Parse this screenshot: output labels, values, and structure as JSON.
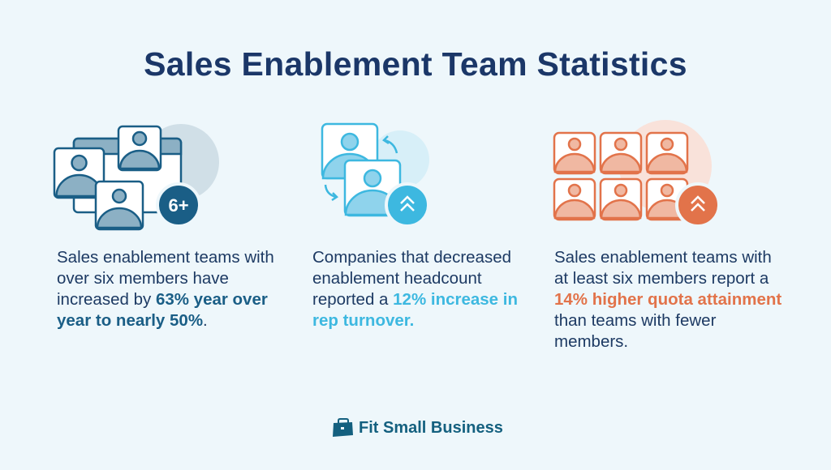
{
  "title": "Sales Enablement Team Statistics",
  "colors": {
    "background": "#eef7fb",
    "navy": "#1b3768",
    "teal": "#1a5e86",
    "cyan": "#3db8e0",
    "orange": "#e2734a"
  },
  "stats": [
    {
      "icon": "video-call-group-icon",
      "badge": "6+",
      "pre": "Sales enablement teams with over six members have increased by ",
      "highlight": "63% year over year to nearly 50%",
      "post": "."
    },
    {
      "icon": "swap-people-icon",
      "badge": "double-chevron-up",
      "pre": "Companies that decreased enablement headcount reported a ",
      "highlight": "12% increase in rep turnover.",
      "post": ""
    },
    {
      "icon": "people-grid-icon",
      "badge": "double-chevron-up",
      "pre": "Sales enablement teams with at least six members report a ",
      "highlight": "14% higher quota attainment",
      "post": " than teams with fewer members."
    }
  ],
  "logo": {
    "text": "Fit Small Business",
    "icon": "briefcase-icon"
  }
}
